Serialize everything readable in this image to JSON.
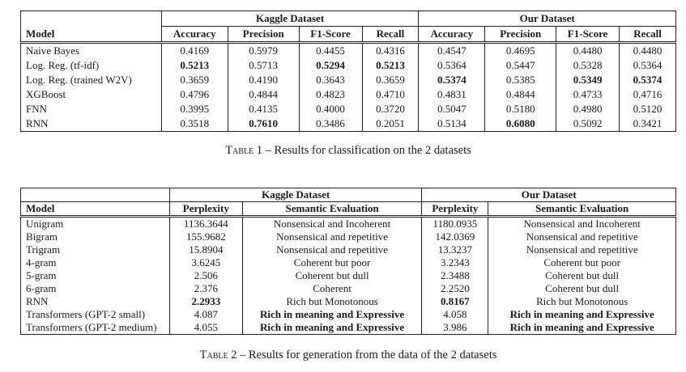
{
  "colors": {
    "background": "#ffffff",
    "text": "#1b1b1b",
    "border": "#222222"
  },
  "tables": [
    {
      "caption": {
        "label": "Table 1",
        "rest": "– Results for classification on the 2 datasets"
      },
      "groups": [
        {
          "label": "Kaggle Dataset",
          "colspan": 4
        },
        {
          "label": "Our Dataset",
          "colspan": 4
        }
      ],
      "col_headers": [
        "Model",
        "Accuracy",
        "Precision",
        "F1-Score",
        "Recall",
        "Accuracy",
        "Precision",
        "F1-Score",
        "Recall"
      ],
      "rows": [
        {
          "model": "Naive Bayes",
          "cells": [
            {
              "v": "0.4169",
              "b": false
            },
            {
              "v": "0.5979",
              "b": false
            },
            {
              "v": "0.4455",
              "b": false
            },
            {
              "v": "0.4316",
              "b": false
            },
            {
              "v": "0.4547",
              "b": false
            },
            {
              "v": "0.4695",
              "b": false
            },
            {
              "v": "0.4480",
              "b": false
            },
            {
              "v": "0.4480",
              "b": false
            }
          ]
        },
        {
          "model": "Log. Reg. (tf-idf)",
          "cells": [
            {
              "v": "0.5213",
              "b": true
            },
            {
              "v": "0.5713",
              "b": false
            },
            {
              "v": "0.5294",
              "b": true
            },
            {
              "v": "0.5213",
              "b": true
            },
            {
              "v": "0.5364",
              "b": false
            },
            {
              "v": "0.5447",
              "b": false
            },
            {
              "v": "0.5328",
              "b": false
            },
            {
              "v": "0.5364",
              "b": false
            }
          ]
        },
        {
          "model": "Log. Reg. (trained W2V)",
          "cells": [
            {
              "v": "0.3659",
              "b": false
            },
            {
              "v": "0.4190",
              "b": false
            },
            {
              "v": "0.3643",
              "b": false
            },
            {
              "v": "0.3659",
              "b": false
            },
            {
              "v": "0.5374",
              "b": true
            },
            {
              "v": "0.5385",
              "b": false
            },
            {
              "v": "0.5349",
              "b": true
            },
            {
              "v": "0.5374",
              "b": true
            }
          ]
        },
        {
          "model": "XGBoost",
          "cells": [
            {
              "v": "0.4796",
              "b": false
            },
            {
              "v": "0.4844",
              "b": false
            },
            {
              "v": "0.4823",
              "b": false
            },
            {
              "v": "0.4710",
              "b": false
            },
            {
              "v": "0.4831",
              "b": false
            },
            {
              "v": "0.4844",
              "b": false
            },
            {
              "v": "0.4733",
              "b": false
            },
            {
              "v": "0.4716",
              "b": false
            }
          ]
        },
        {
          "model": "FNN",
          "cells": [
            {
              "v": "0.3995",
              "b": false
            },
            {
              "v": "0.4135",
              "b": false
            },
            {
              "v": "0.4000",
              "b": false
            },
            {
              "v": "0.3720",
              "b": false
            },
            {
              "v": "0.5047",
              "b": false
            },
            {
              "v": "0.5180",
              "b": false
            },
            {
              "v": "0.4980",
              "b": false
            },
            {
              "v": "0.5120",
              "b": false
            }
          ]
        },
        {
          "model": "RNN",
          "cells": [
            {
              "v": "0.3518",
              "b": false
            },
            {
              "v": "0.7610",
              "b": true
            },
            {
              "v": "0.3486",
              "b": false
            },
            {
              "v": "0.2051",
              "b": false
            },
            {
              "v": "0.5134",
              "b": false
            },
            {
              "v": "0.6080",
              "b": true
            },
            {
              "v": "0.5092",
              "b": false
            },
            {
              "v": "0.3421",
              "b": false
            }
          ]
        }
      ]
    },
    {
      "caption": {
        "label": "Table 2",
        "rest": "– Results for generation from the data of the 2 datasets"
      },
      "groups": [
        {
          "label": "Kaggle Dataset",
          "colspan": 2
        },
        {
          "label": "Our Dataset",
          "colspan": 2
        }
      ],
      "col_headers": [
        "Model",
        "Perplexity",
        "Semantic Evaluation",
        "Perplexity",
        "Semantic Evaluation"
      ],
      "rows": [
        {
          "model": "Unigram",
          "cells": [
            {
              "v": "1136.3644",
              "b": false
            },
            {
              "v": "Nonsensical and Incoherent",
              "b": false
            },
            {
              "v": "1180.0935",
              "b": false
            },
            {
              "v": "Nonsensical and Incoherent",
              "b": false
            }
          ]
        },
        {
          "model": "Bigram",
          "cells": [
            {
              "v": "155.9682",
              "b": false
            },
            {
              "v": "Nonsensical and repetitive",
              "b": false
            },
            {
              "v": "142.0369",
              "b": false
            },
            {
              "v": "Nonsensical and repetitive",
              "b": false
            }
          ]
        },
        {
          "model": "Trigram",
          "cells": [
            {
              "v": "15.8904",
              "b": false
            },
            {
              "v": "Nonsensical and repetitive",
              "b": false
            },
            {
              "v": "13.3237",
              "b": false
            },
            {
              "v": "Nonsensical and repetitive",
              "b": false
            }
          ]
        },
        {
          "model": "4-gram",
          "cells": [
            {
              "v": "3.6245",
              "b": false
            },
            {
              "v": "Coherent but poor",
              "b": false
            },
            {
              "v": "3.2343",
              "b": false
            },
            {
              "v": "Coherent but poor",
              "b": false
            }
          ]
        },
        {
          "model": "5-gram",
          "cells": [
            {
              "v": "2.506",
              "b": false
            },
            {
              "v": "Coherent but dull",
              "b": false
            },
            {
              "v": "2.3488",
              "b": false
            },
            {
              "v": "Coherent but dull",
              "b": false
            }
          ]
        },
        {
          "model": "6-gram",
          "cells": [
            {
              "v": "2.376",
              "b": false
            },
            {
              "v": "Coherent",
              "b": false
            },
            {
              "v": "2.2520",
              "b": false
            },
            {
              "v": "Coherent but dull",
              "b": false
            }
          ]
        },
        {
          "model": "RNN",
          "cells": [
            {
              "v": "2.2933",
              "b": true
            },
            {
              "v": "Rich but Monotonous",
              "b": false
            },
            {
              "v": "0.8167",
              "b": true
            },
            {
              "v": "Rich but Monotonous",
              "b": false
            }
          ]
        },
        {
          "model": "Transformers (GPT-2 small)",
          "cells": [
            {
              "v": "4.087",
              "b": false
            },
            {
              "v": "Rich in meaning and Expressive",
              "b": true
            },
            {
              "v": "4.058",
              "b": false
            },
            {
              "v": "Rich in meaning and Expressive",
              "b": true
            }
          ]
        },
        {
          "model": "Transformers (GPT-2 medium)",
          "cells": [
            {
              "v": "4.055",
              "b": false
            },
            {
              "v": "Rich in meaning and Expressive",
              "b": true
            },
            {
              "v": "3.986",
              "b": false
            },
            {
              "v": "Rich in meaning and Expressive",
              "b": true
            }
          ]
        }
      ]
    }
  ]
}
